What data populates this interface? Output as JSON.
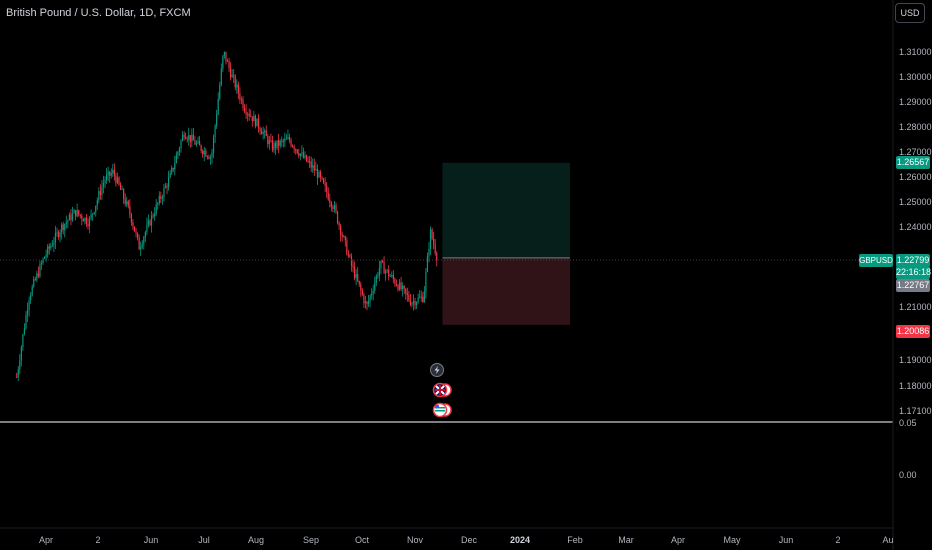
{
  "header": {
    "title": "British Pound / U.S. Dollar, 1D, FXCM",
    "currency": "USD"
  },
  "price_axis": {
    "labels": [
      "1.31000",
      "1.30000",
      "1.29000",
      "1.28000",
      "1.27000",
      "1.26000",
      "1.25000",
      "1.24000",
      "1.21000",
      "1.19000",
      "1.18000",
      "1.17100"
    ],
    "tags": {
      "target": "1.26567",
      "symbol": "GBPUSD",
      "current": "1.22799",
      "countdown": "22:16:18",
      "entry": "1.22767",
      "stop": "1.20086"
    }
  },
  "indicator_axis": {
    "labels": [
      "0.05",
      "0.00"
    ]
  },
  "time_axis": {
    "labels": [
      "Apr",
      "2",
      "Jun",
      "Jul",
      "Aug",
      "Sep",
      "Oct",
      "Nov",
      "Dec",
      "2024",
      "Feb",
      "Mar",
      "Apr",
      "May",
      "Jun",
      "2",
      "Au"
    ]
  },
  "markers": [
    "lightning-icon",
    "flag-uk-icon",
    "flag-us-icon"
  ],
  "colors": {
    "up": "#089981",
    "down": "#f23645",
    "target_zone": "#061f1a",
    "stop_zone": "#301316",
    "target_tag": "#089981",
    "entry_tag": "#787b86",
    "stop_tag": "#f23645"
  },
  "chart_data": {
    "type": "candlestick",
    "symbol": "GBPUSD",
    "interval": "1D",
    "y_range": [
      1.171,
      1.315
    ],
    "x_range": [
      "2023-03-15",
      "2024-08-05"
    ],
    "close_path": [
      [
        "2023-03-15",
        1.18
      ],
      [
        "2023-03-22",
        1.212
      ],
      [
        "2023-03-31",
        1.228
      ],
      [
        "2023-04-10",
        1.24
      ],
      [
        "2023-04-18",
        1.246
      ],
      [
        "2023-04-26",
        1.242
      ],
      [
        "2023-05-05",
        1.259
      ],
      [
        "2023-05-10",
        1.262
      ],
      [
        "2023-05-20",
        1.245
      ],
      [
        "2023-05-25",
        1.232
      ],
      [
        "2023-06-02",
        1.245
      ],
      [
        "2023-06-12",
        1.26
      ],
      [
        "2023-06-20",
        1.278
      ],
      [
        "2023-06-29",
        1.272
      ],
      [
        "2023-07-06",
        1.268
      ],
      [
        "2023-07-13",
        1.31
      ],
      [
        "2023-07-18",
        1.3
      ],
      [
        "2023-07-25",
        1.288
      ],
      [
        "2023-08-03",
        1.28
      ],
      [
        "2023-08-10",
        1.272
      ],
      [
        "2023-08-20",
        1.275
      ],
      [
        "2023-08-28",
        1.268
      ],
      [
        "2023-09-05",
        1.262
      ],
      [
        "2023-09-15",
        1.248
      ],
      [
        "2023-09-25",
        1.225
      ],
      [
        "2023-10-04",
        1.208
      ],
      [
        "2023-10-12",
        1.225
      ],
      [
        "2023-10-22",
        1.217
      ],
      [
        "2023-10-30",
        1.21
      ],
      [
        "2023-11-06",
        1.212
      ],
      [
        "2023-11-10",
        1.238
      ],
      [
        "2023-11-14",
        1.228
      ]
    ],
    "position": {
      "type": "long",
      "target": 1.26567,
      "entry": 1.22767,
      "stop": 1.20086,
      "current": 1.22799,
      "start": "2023-11-17",
      "end": "2024-01-30"
    }
  }
}
